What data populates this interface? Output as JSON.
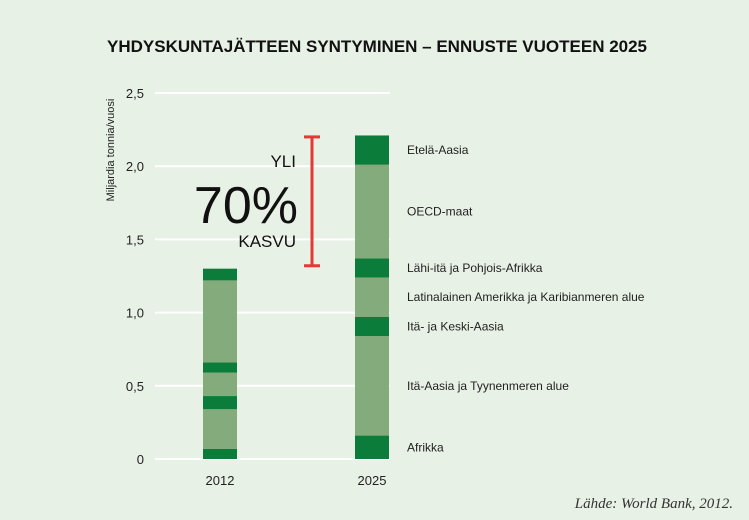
{
  "chart_data": {
    "type": "bar",
    "title": "YHDYSKUNTAJÄTTEEN SYNTYMINEN – ENNUSTE VUOTEEN 2025",
    "ylabel": "Miljardia tonnia/vuosi",
    "ylim": [
      0,
      2.5
    ],
    "yticks": [
      {
        "value": 0,
        "label": "0"
      },
      {
        "value": 0.5,
        "label": "0,5"
      },
      {
        "value": 1.0,
        "label": "1,0"
      },
      {
        "value": 1.5,
        "label": "1,5"
      },
      {
        "value": 2.0,
        "label": "2,0"
      },
      {
        "value": 2.5,
        "label": "2,5"
      }
    ],
    "grid": true,
    "stacked": true,
    "categories": [
      "2012",
      "2025"
    ],
    "segment_colors": [
      "#0b7c3a",
      "#84ab7b"
    ],
    "series": [
      {
        "name": "Afrikka",
        "values": [
          0.07,
          0.16
        ]
      },
      {
        "name": "Itä-Aasia ja Tyynenmeren alue",
        "values": [
          0.27,
          0.68
        ]
      },
      {
        "name": "Itä- ja Keski-Aasia",
        "values": [
          0.09,
          0.13
        ]
      },
      {
        "name": "Latinalainen Amerikka ja Karibianmeren alue",
        "values": [
          0.16,
          0.27
        ]
      },
      {
        "name": "Lähi-itä ja Pohjois-Afrikka",
        "values": [
          0.07,
          0.13
        ]
      },
      {
        "name": "OECD-maat",
        "values": [
          0.56,
          0.64
        ]
      },
      {
        "name": "Etelä-Aasia",
        "values": [
          0.08,
          0.2
        ]
      }
    ],
    "annotation": {
      "line1": "YLI",
      "line2": "70%",
      "line3": "KASVU",
      "bracket_from": 1.32,
      "bracket_to": 2.2,
      "color": "#e53935"
    },
    "source": "Lähde: World Bank, 2012."
  }
}
